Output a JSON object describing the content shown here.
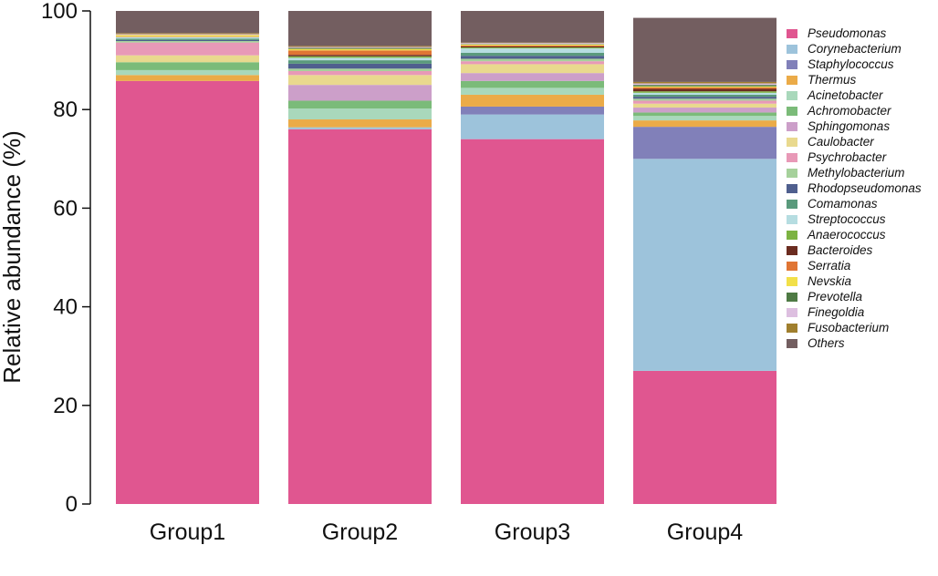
{
  "chart_data": {
    "type": "bar",
    "stacked": true,
    "ylabel": "Relative abundance (%)",
    "xlabel": "",
    "ylim": [
      0,
      100
    ],
    "yticks": [
      0,
      20,
      40,
      60,
      80,
      100
    ],
    "categories": [
      "Group1",
      "Group2",
      "Group3",
      "Group4"
    ],
    "legend_position": "right",
    "series": [
      {
        "name": "Pseudomonas",
        "color": "#E05690",
        "values": [
          85.8,
          76.0,
          74.0,
          27.0
        ]
      },
      {
        "name": "Corynebacterium",
        "color": "#9DC3DB",
        "values": [
          0.0,
          0.4,
          5.0,
          43.0
        ]
      },
      {
        "name": "Staphylococcus",
        "color": "#8180B9",
        "values": [
          0.0,
          0.0,
          1.6,
          6.5
        ]
      },
      {
        "name": "Thermus",
        "color": "#EBAB48",
        "values": [
          1.2,
          1.6,
          2.4,
          1.3
        ]
      },
      {
        "name": "Acinetobacter",
        "color": "#A9D8BB",
        "values": [
          1.0,
          2.2,
          1.4,
          0.9
        ]
      },
      {
        "name": "Achromobacter",
        "color": "#7BBB79",
        "values": [
          1.6,
          1.6,
          1.4,
          0.7
        ]
      },
      {
        "name": "Sphingomonas",
        "color": "#CC9FC9",
        "values": [
          0.0,
          3.2,
          1.6,
          1.0
        ]
      },
      {
        "name": "Caulobacter",
        "color": "#E9D98E",
        "values": [
          1.4,
          2.0,
          1.8,
          0.8
        ]
      },
      {
        "name": "Psychrobacter",
        "color": "#E899B7",
        "values": [
          2.6,
          0.8,
          0.6,
          0.6
        ]
      },
      {
        "name": "Methylobacterium",
        "color": "#A6D19B",
        "values": [
          0.3,
          0.5,
          0.5,
          0.4
        ]
      },
      {
        "name": "Rhodopseudomonas",
        "color": "#4F5F8E",
        "values": [
          0.2,
          1.0,
          0.6,
          0.4
        ]
      },
      {
        "name": "Comamonas",
        "color": "#5A9A7C",
        "values": [
          0.3,
          0.7,
          0.6,
          0.4
        ]
      },
      {
        "name": "Streptococcus",
        "color": "#B6DDE1",
        "values": [
          0.3,
          0.5,
          0.9,
          0.4
        ]
      },
      {
        "name": "Anaerococcus",
        "color": "#7CB342",
        "values": [
          0.0,
          0.3,
          0.2,
          0.3
        ]
      },
      {
        "name": "Bacteroides",
        "color": "#6B2C20",
        "values": [
          0.0,
          0.3,
          0.2,
          0.5
        ]
      },
      {
        "name": "Serratia",
        "color": "#E07534",
        "values": [
          0.1,
          0.9,
          0.2,
          0.3
        ]
      },
      {
        "name": "Nevskia",
        "color": "#F2E049",
        "values": [
          0.3,
          0.3,
          0.2,
          0.2
        ]
      },
      {
        "name": "Prevotella",
        "color": "#4E7A44",
        "values": [
          0.0,
          0.2,
          0.1,
          0.3
        ]
      },
      {
        "name": "Finegoldia",
        "color": "#DDBFE0",
        "values": [
          0.2,
          0.2,
          0.2,
          0.3
        ]
      },
      {
        "name": "Fusobacterium",
        "color": "#A07F2E",
        "values": [
          0.2,
          0.2,
          0.1,
          0.3
        ]
      },
      {
        "name": "Others",
        "color": "#735E60",
        "values": [
          4.5,
          7.1,
          6.4,
          13.0
        ]
      }
    ]
  }
}
